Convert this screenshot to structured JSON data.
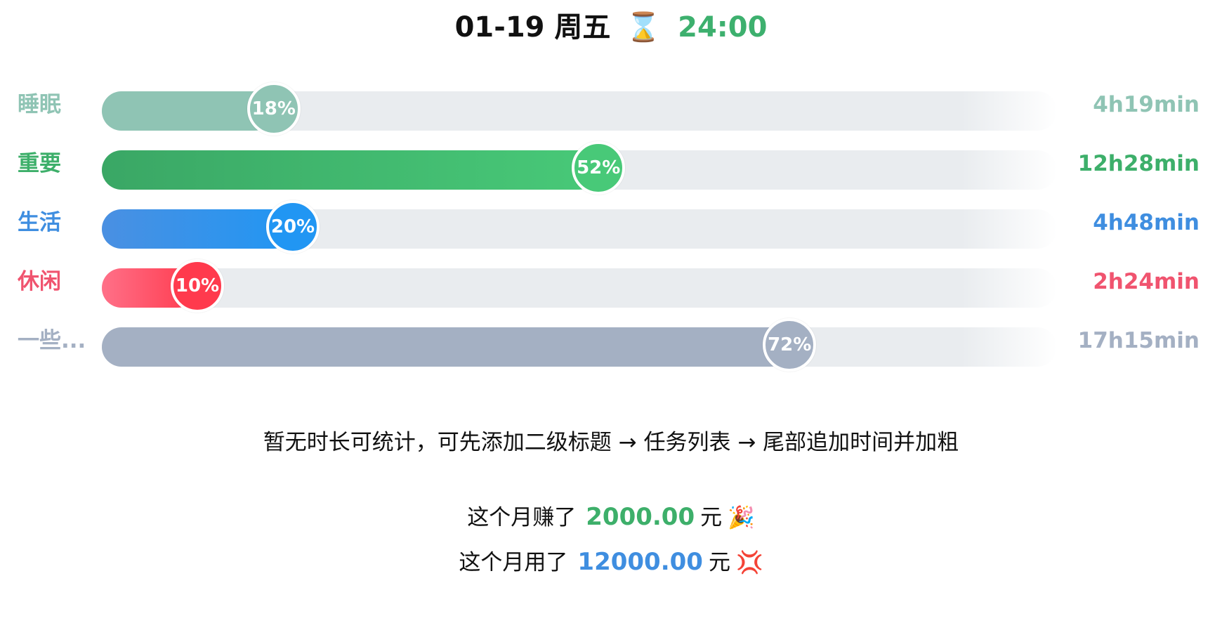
{
  "header": {
    "date": "01-19 周五",
    "hourglass_icon": "⌛",
    "time": "24:00"
  },
  "rows": [
    {
      "label": "睡眠",
      "percent": 18,
      "percent_text": "18%",
      "duration": "4h19min",
      "color": "#8fc4b4",
      "fill_from": "#8fc4b4",
      "fill_to": "#8fc4b4"
    },
    {
      "label": "重要",
      "percent": 52,
      "percent_text": "52%",
      "duration": "12h28min",
      "color": "#3daf6a",
      "fill_from": "#3aa765",
      "fill_to": "#48c978"
    },
    {
      "label": "生活",
      "percent": 20,
      "percent_text": "20%",
      "duration": "4h48min",
      "color": "#3f8ee0",
      "fill_from": "#4a90e2",
      "fill_to": "#2196f3"
    },
    {
      "label": "休闲",
      "percent": 10,
      "percent_text": "10%",
      "duration": "2h24min",
      "color": "#f0546f",
      "fill_from": "#ff7088",
      "fill_to": "#ff3a4d"
    },
    {
      "label": "一些...",
      "percent": 72,
      "percent_text": "72%",
      "duration": "17h15min",
      "color": "#a4b0c3",
      "fill_from": "#a4b0c3",
      "fill_to": "#a4b0c3"
    }
  ],
  "hint": "暂无时长可统计，可先添加二级标题 → 任务列表 → 尾部追加时间并加粗",
  "earned": {
    "prefix": "这个月赚了",
    "amount": "2000.00",
    "unit": "元",
    "emoji": "🎉",
    "color": "#3daf6a"
  },
  "spent": {
    "prefix": "这个月用了",
    "amount": "12000.00",
    "unit": "元",
    "emoji": "💢",
    "color": "#3f8ee0"
  }
}
